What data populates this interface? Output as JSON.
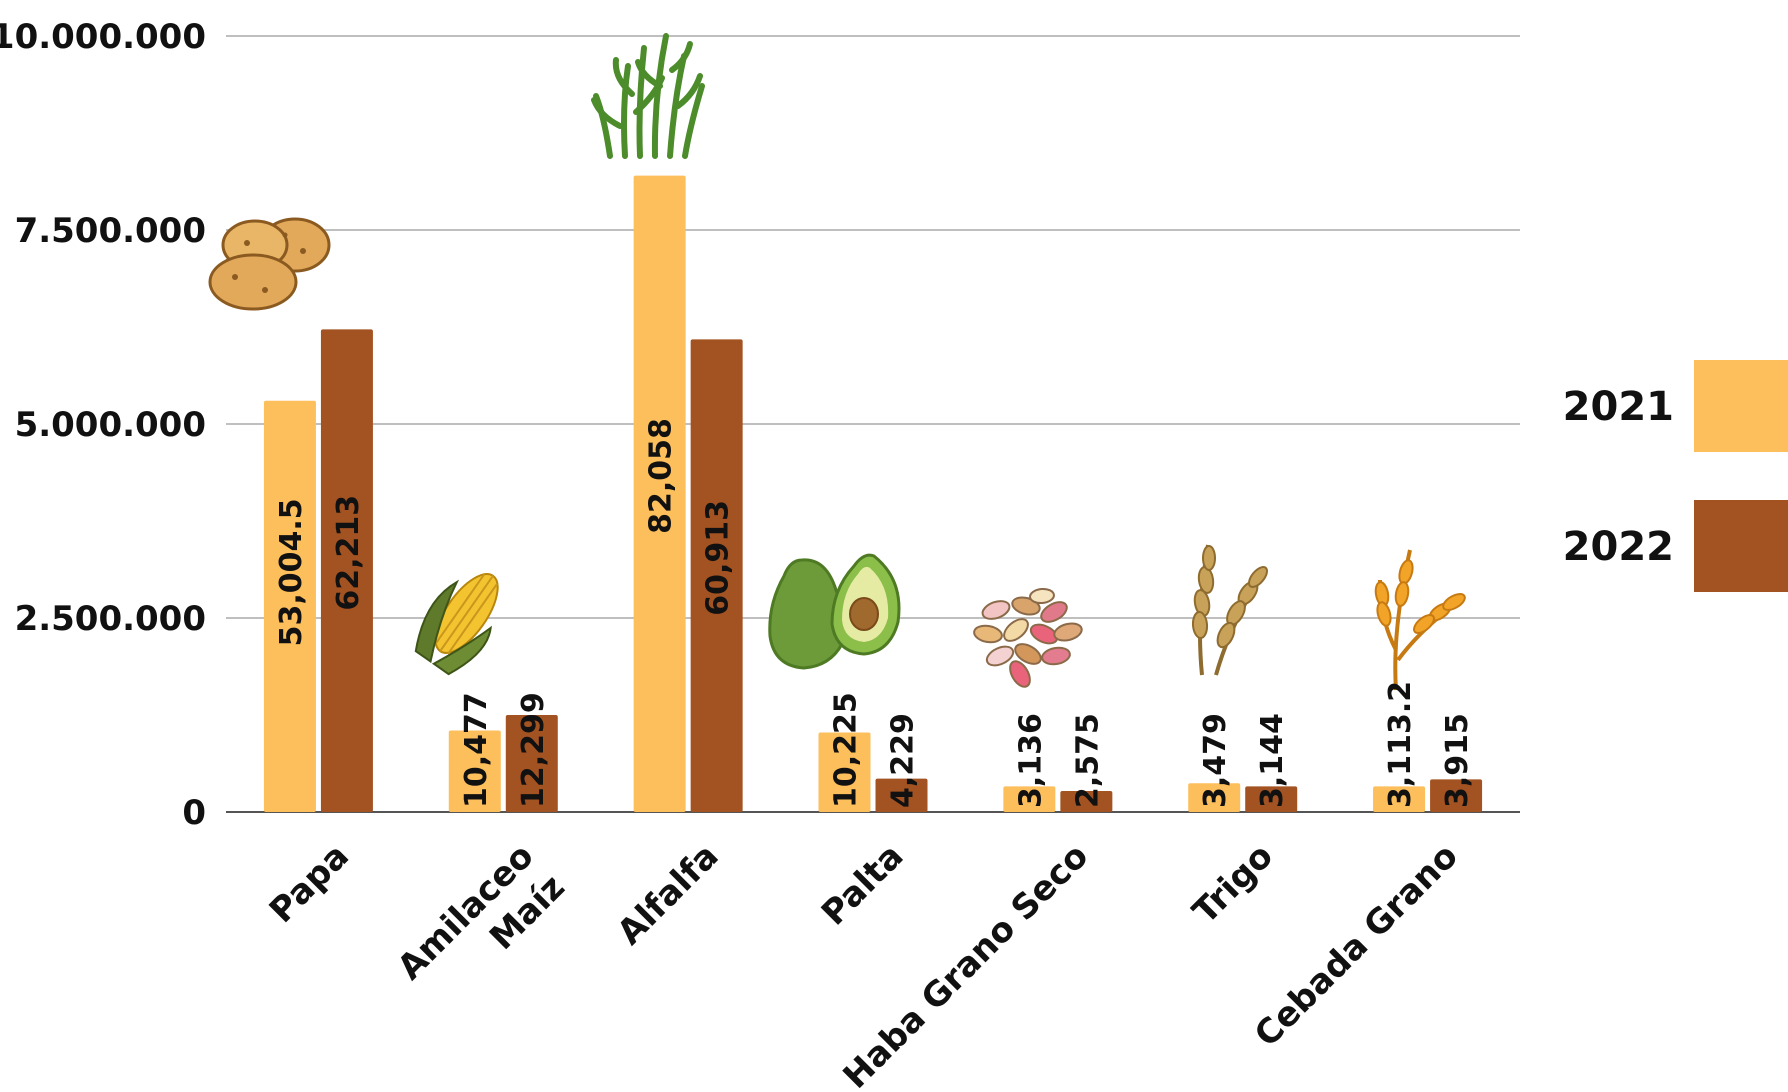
{
  "colors": {
    "2021": "#FDBE5C",
    "2022": "#A35222",
    "grid": "#BFBFBF",
    "axis": "#555555"
  },
  "legend": {
    "items": [
      {
        "name": "2021"
      },
      {
        "name": "2022"
      }
    ],
    "placement": "right"
  },
  "icons": [
    "potato-icon",
    "corn-icon",
    "alfalfa-icon",
    "avocado-icon",
    "beans-icon",
    "wheat-icon",
    "barley-icon"
  ],
  "chart_data": {
    "type": "bar",
    "title": "",
    "xlabel": "",
    "ylabel": "",
    "ylim": [
      0,
      10000000
    ],
    "grid": true,
    "yticks": [
      {
        "value": 0,
        "label": "0"
      },
      {
        "value": 2500000,
        "label": "2.500.000"
      },
      {
        "value": 5000000,
        "label": "5.000.000"
      },
      {
        "value": 7500000,
        "label": "7.500.000"
      },
      {
        "value": 10000000,
        "label": "10.000.000"
      }
    ],
    "categories": [
      {
        "lines": [
          "Papa"
        ]
      },
      {
        "lines": [
          "Maíz",
          "Amilaceo"
        ]
      },
      {
        "lines": [
          "Alfalfa"
        ]
      },
      {
        "lines": [
          "Palta"
        ]
      },
      {
        "lines": [
          "Haba Grano Seco"
        ]
      },
      {
        "lines": [
          "Trigo"
        ]
      },
      {
        "lines": [
          "Cebada Grano"
        ]
      }
    ],
    "series": [
      {
        "name": "2021",
        "values": [
          5300000,
          1050000,
          8200000,
          1025000,
          330000,
          370000,
          330000
        ],
        "labels": [
          "53,004.5",
          "10,477",
          "82,058",
          "10,225",
          "3,136",
          "3,479",
          "3,113.2"
        ]
      },
      {
        "name": "2022",
        "values": [
          6220000,
          1250000,
          6090000,
          430000,
          270000,
          330000,
          420000
        ],
        "labels": [
          "62,213",
          "12,299",
          "60,913",
          "4,229",
          "2,575",
          "3,144",
          "3,915"
        ]
      }
    ]
  }
}
